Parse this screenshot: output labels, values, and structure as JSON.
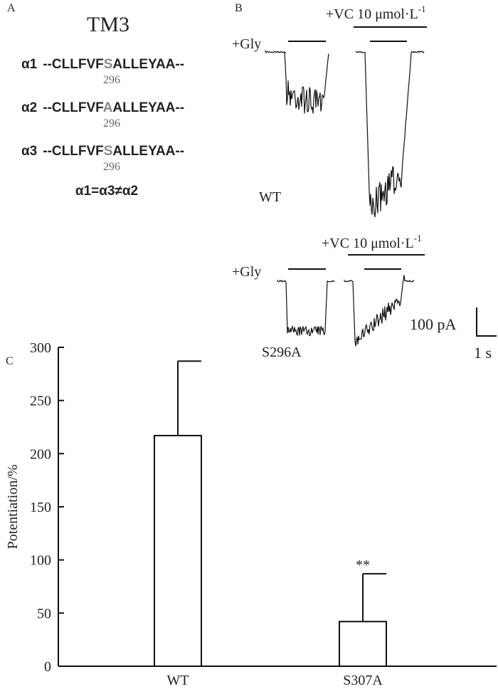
{
  "panel_a": {
    "letter": "A",
    "title": "TM3",
    "rows": [
      {
        "label": "α1",
        "prefix": "--CLLFVF",
        "residue": "S",
        "suffix": "ALLEYAA--",
        "position": "296"
      },
      {
        "label": "α2",
        "prefix": "--CLLFVF",
        "residue": "A",
        "suffix": "ALLEYAA--",
        "position": "296"
      },
      {
        "label": "α3",
        "prefix": "--CLLFVF",
        "residue": "S",
        "suffix": "ALLEYAA--",
        "position": "296"
      }
    ],
    "relation": "α1=α3≠α2"
  },
  "panel_b": {
    "letter": "B",
    "gly": "+Gly",
    "vc": "+VC 10 μmol·L",
    "vc_sup": "-1",
    "rows": [
      "WT",
      "S296A"
    ],
    "scale_current": "100 pA",
    "scale_time": "1 s"
  },
  "panel_c": {
    "letter": "C"
  },
  "chart_data": {
    "type": "bar",
    "categories": [
      "WT",
      "S307A"
    ],
    "values": [
      217,
      42
    ],
    "errors": [
      70,
      45
    ],
    "color": "#ffffff",
    "ylim": [
      0,
      300
    ],
    "yticks": [
      0,
      50,
      100,
      150,
      200,
      250,
      300
    ],
    "ylabel": "Potentiation/%",
    "annotations": [
      {
        "text": "**",
        "category": "S307A"
      }
    ]
  }
}
